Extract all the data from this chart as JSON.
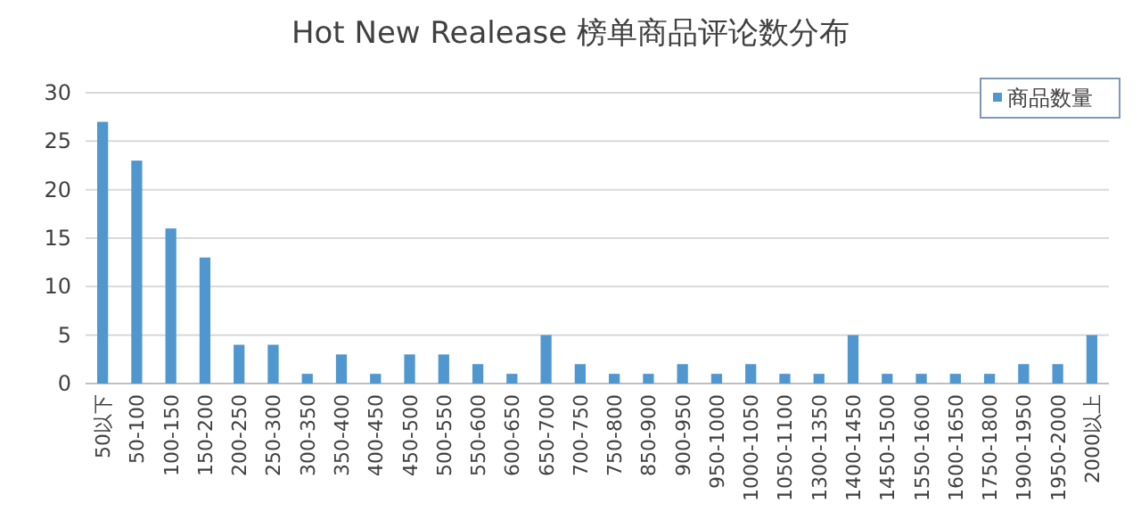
{
  "chart_data": {
    "type": "bar",
    "title": "Hot New Realease 榜单商品评论数分布",
    "categories": [
      "50以下",
      "50-100",
      "100-150",
      "150-200",
      "200-250",
      "250-300",
      "300-350",
      "350-400",
      "400-450",
      "450-500",
      "500-550",
      "550-600",
      "600-650",
      "650-700",
      "700-750",
      "750-800",
      "850-900",
      "900-950",
      "950-1000",
      "1000-1050",
      "1050-1100",
      "1300-1350",
      "1400-1450",
      "1450-1500",
      "1550-1600",
      "1600-1650",
      "1750-1800",
      "1900-1950",
      "1950-2000",
      "2000以上"
    ],
    "series": [
      {
        "name": "商品数量",
        "color": "#5197cf",
        "values": [
          27,
          23,
          16,
          13,
          4,
          4,
          1,
          3,
          1,
          3,
          3,
          2,
          1,
          5,
          2,
          1,
          1,
          2,
          1,
          2,
          1,
          1,
          5,
          1,
          1,
          1,
          1,
          2,
          2,
          5
        ]
      }
    ],
    "ylim": [
      0,
      30
    ],
    "yticks": [
      0,
      5,
      10,
      15,
      20,
      25,
      30
    ],
    "grid": "y",
    "legend": "top right"
  }
}
